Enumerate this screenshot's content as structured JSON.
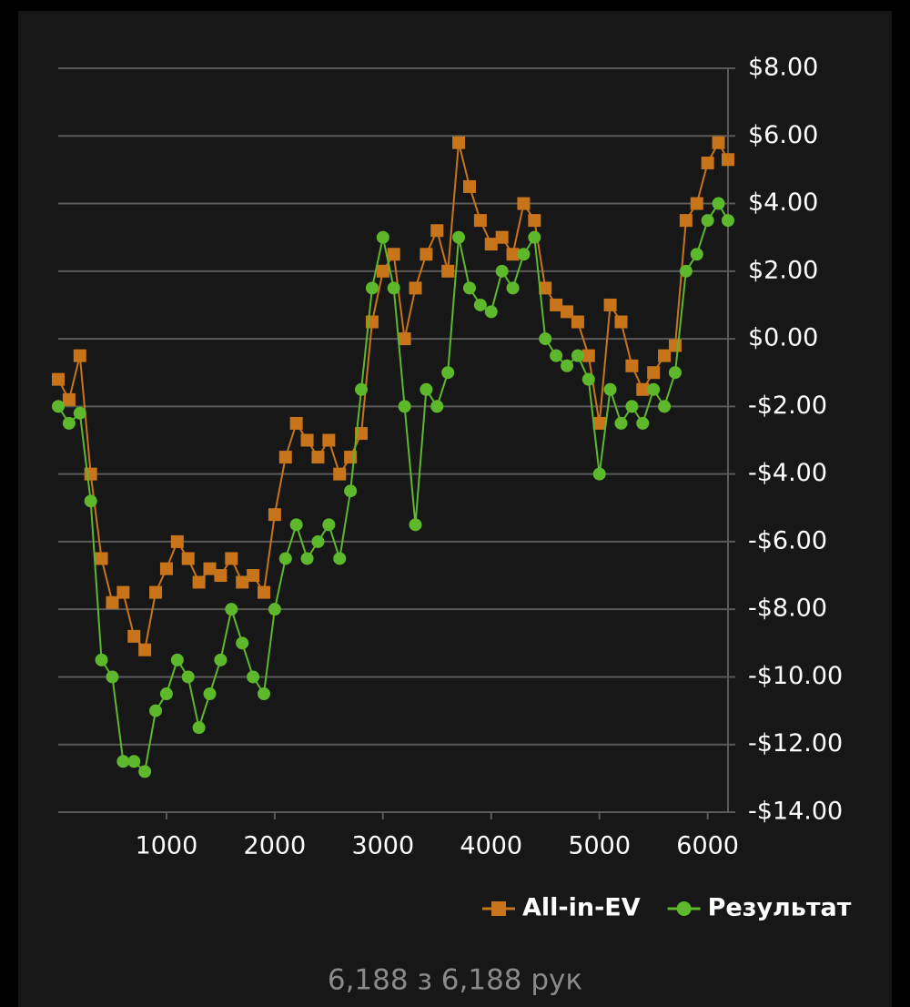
{
  "chart_data": {
    "type": "line",
    "x": [
      0,
      100,
      200,
      300,
      400,
      500,
      600,
      700,
      800,
      900,
      1000,
      1100,
      1200,
      1300,
      1400,
      1500,
      1600,
      1700,
      1800,
      1900,
      2000,
      2100,
      2200,
      2300,
      2400,
      2500,
      2600,
      2700,
      2800,
      2900,
      3000,
      3100,
      3200,
      3300,
      3400,
      3500,
      3600,
      3700,
      3800,
      3900,
      4000,
      4100,
      4200,
      4300,
      4400,
      4500,
      4600,
      4700,
      4800,
      4900,
      5000,
      5100,
      5200,
      5300,
      5400,
      5500,
      5600,
      5700,
      5800,
      5900,
      6000,
      6100,
      6188
    ],
    "series": [
      {
        "name": "All-in-EV",
        "color": "#c8741a",
        "marker": "square",
        "values": [
          -1.2,
          -1.8,
          -0.5,
          -4.0,
          -6.5,
          -7.8,
          -7.5,
          -8.8,
          -9.2,
          -7.5,
          -6.8,
          -6.0,
          -6.5,
          -7.2,
          -6.8,
          -7.0,
          -6.5,
          -7.2,
          -7.0,
          -7.5,
          -5.2,
          -3.5,
          -2.5,
          -3.0,
          -3.5,
          -3.0,
          -4.0,
          -3.5,
          -2.8,
          0.5,
          2.0,
          2.5,
          0.0,
          1.5,
          2.5,
          3.2,
          2.0,
          5.8,
          4.5,
          3.5,
          2.8,
          3.0,
          2.5,
          4.0,
          3.5,
          1.5,
          1.0,
          0.8,
          0.5,
          -0.5,
          -2.5,
          1.0,
          0.5,
          -0.8,
          -1.5,
          -1.0,
          -0.5,
          -0.2,
          3.5,
          4.0,
          5.2,
          5.8,
          5.3
        ]
      },
      {
        "name": "Результат",
        "color": "#5db82c",
        "marker": "circle",
        "values": [
          -2.0,
          -2.5,
          -2.2,
          -4.8,
          -9.5,
          -10.0,
          -12.5,
          -12.5,
          -12.8,
          -11.0,
          -10.5,
          -9.5,
          -10.0,
          -11.5,
          -10.5,
          -9.5,
          -8.0,
          -9.0,
          -10.0,
          -10.5,
          -8.0,
          -6.5,
          -5.5,
          -6.5,
          -6.0,
          -5.5,
          -6.5,
          -4.5,
          -1.5,
          1.5,
          3.0,
          1.5,
          -2.0,
          -5.5,
          -1.5,
          -2.0,
          -1.0,
          3.0,
          1.5,
          1.0,
          0.8,
          2.0,
          1.5,
          2.5,
          3.0,
          0.0,
          -0.5,
          -0.8,
          -0.5,
          -1.2,
          -4.0,
          -1.5,
          -2.5,
          -2.0,
          -2.5,
          -1.5,
          -2.0,
          -1.0,
          2.0,
          2.5,
          3.5,
          4.0,
          3.5
        ]
      }
    ],
    "xlim": [
      0,
      6188
    ],
    "xticks": [
      1000,
      2000,
      3000,
      4000,
      5000,
      6000
    ],
    "ylim": [
      -14,
      8
    ],
    "yticks": [
      {
        "value": -14,
        "label": "-$14.00"
      },
      {
        "value": -12,
        "label": "-$12.00"
      },
      {
        "value": -10,
        "label": "-$10.00"
      },
      {
        "value": -8,
        "label": "-$8.00"
      },
      {
        "value": -6,
        "label": "-$6.00"
      },
      {
        "value": -4,
        "label": "-$4.00"
      },
      {
        "value": -2,
        "label": "-$2.00"
      },
      {
        "value": 0,
        "label": "$0.00"
      },
      {
        "value": 2,
        "label": "$2.00"
      },
      {
        "value": 4,
        "label": "$4.00"
      },
      {
        "value": 6,
        "label": "$6.00"
      },
      {
        "value": 8,
        "label": "$8.00"
      }
    ],
    "grid": true,
    "legend": "bottom-right"
  },
  "footer": "6,188 з 6,188 рук"
}
